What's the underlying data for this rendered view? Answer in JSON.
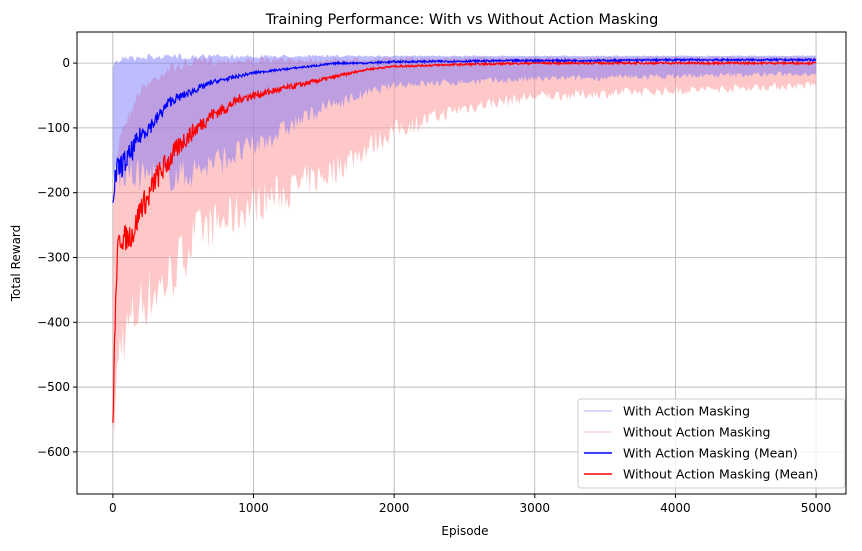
{
  "chart_data": {
    "type": "line",
    "title": "Training Performance: With vs Without Action Masking",
    "xlabel": "Episode",
    "ylabel": "Total Reward",
    "xlim": [
      -255,
      5213
    ],
    "ylim": [
      -665,
      48
    ],
    "xticks": [
      0,
      1000,
      2000,
      3000,
      4000,
      5000
    ],
    "yticks": [
      0,
      -100,
      -200,
      -300,
      -400,
      -500,
      -600
    ],
    "grid": true,
    "legend_position": "lower-right",
    "colors": {
      "with": "#0000ff",
      "without": "#ff0000",
      "with_band": "#6a6aff",
      "without_band": "#ff9a9a"
    },
    "bands": [
      {
        "name": "With Action Masking",
        "x": [
          0,
          50,
          300,
          500,
          1000,
          1500,
          2000,
          3000,
          5000
        ],
        "upper": [
          0,
          10,
          15,
          15,
          14,
          13,
          12,
          12,
          12
        ],
        "lower": [
          -200,
          -200,
          -200,
          -200,
          -150,
          -80,
          -40,
          -30,
          -20
        ]
      },
      {
        "name": "Without Action Masking",
        "x": [
          0,
          50,
          200,
          400,
          600,
          800,
          1000,
          1500,
          2000,
          2500,
          3000,
          4000,
          5000
        ],
        "upper": [
          -200,
          -100,
          -30,
          0,
          10,
          10,
          10,
          10,
          10,
          10,
          10,
          10,
          10
        ],
        "lower": [
          -630,
          -480,
          -420,
          -380,
          -300,
          -280,
          -250,
          -200,
          -120,
          -80,
          -60,
          -50,
          -40
        ]
      }
    ],
    "series": [
      {
        "name": "With Action Masking (Mean)",
        "x": [
          0,
          25,
          50,
          100,
          150,
          200,
          300,
          400,
          500,
          600,
          700,
          800,
          900,
          1000,
          1200,
          1400,
          1600,
          1800,
          2000,
          2500,
          3000,
          3500,
          4000,
          4500,
          5000
        ],
        "y": [
          -200,
          -170,
          -160,
          -150,
          -130,
          -110,
          -90,
          -60,
          -50,
          -40,
          -30,
          -25,
          -20,
          -15,
          -10,
          -5,
          0,
          0,
          2,
          3,
          4,
          4,
          5,
          5,
          5
        ]
      },
      {
        "name": "Without Action Masking (Mean)",
        "x": [
          0,
          10,
          30,
          50,
          100,
          150,
          200,
          250,
          300,
          400,
          500,
          600,
          700,
          800,
          900,
          1000,
          1200,
          1400,
          1600,
          1800,
          2000,
          2500,
          3000,
          4000,
          5000
        ],
        "y": [
          -560,
          -450,
          -300,
          -270,
          -270,
          -260,
          -220,
          -210,
          -180,
          -150,
          -120,
          -100,
          -80,
          -70,
          -55,
          -50,
          -40,
          -30,
          -20,
          -10,
          -5,
          -2,
          0,
          0,
          0
        ]
      }
    ]
  }
}
